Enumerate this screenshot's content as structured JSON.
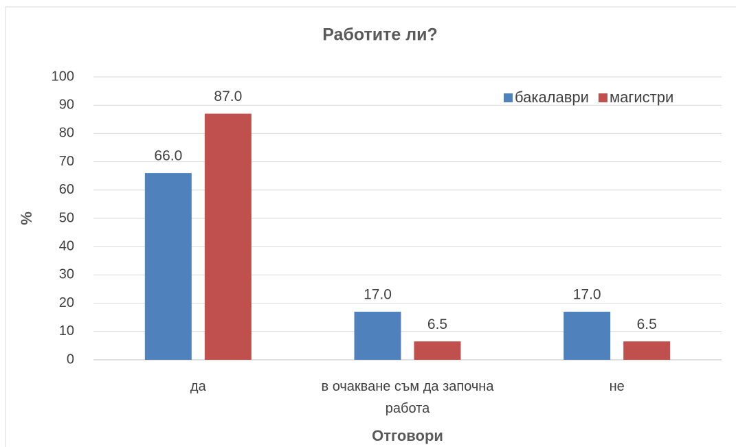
{
  "chart_data": {
    "type": "bar",
    "title": "Работите ли?",
    "x_label": "Отговори",
    "y_label": "%",
    "categories": [
      "да",
      "в очакване съм да започна работа",
      "не"
    ],
    "series": [
      {
        "name": "бакалаври",
        "color": "#4f81bd",
        "values": [
          66,
          17,
          17
        ],
        "value_labels": [
          "66.0",
          "17.0",
          "17.0"
        ]
      },
      {
        "name": "магистри",
        "color": "#c0504d",
        "values": [
          87,
          6.5,
          6.5
        ],
        "value_labels": [
          "87.0",
          "6.5",
          "6.5"
        ]
      }
    ],
    "ylim": [
      0,
      100
    ],
    "yticks": [
      0,
      10,
      20,
      30,
      40,
      50,
      60,
      70,
      80,
      90,
      100
    ],
    "grid": true,
    "legend": "top-right"
  }
}
